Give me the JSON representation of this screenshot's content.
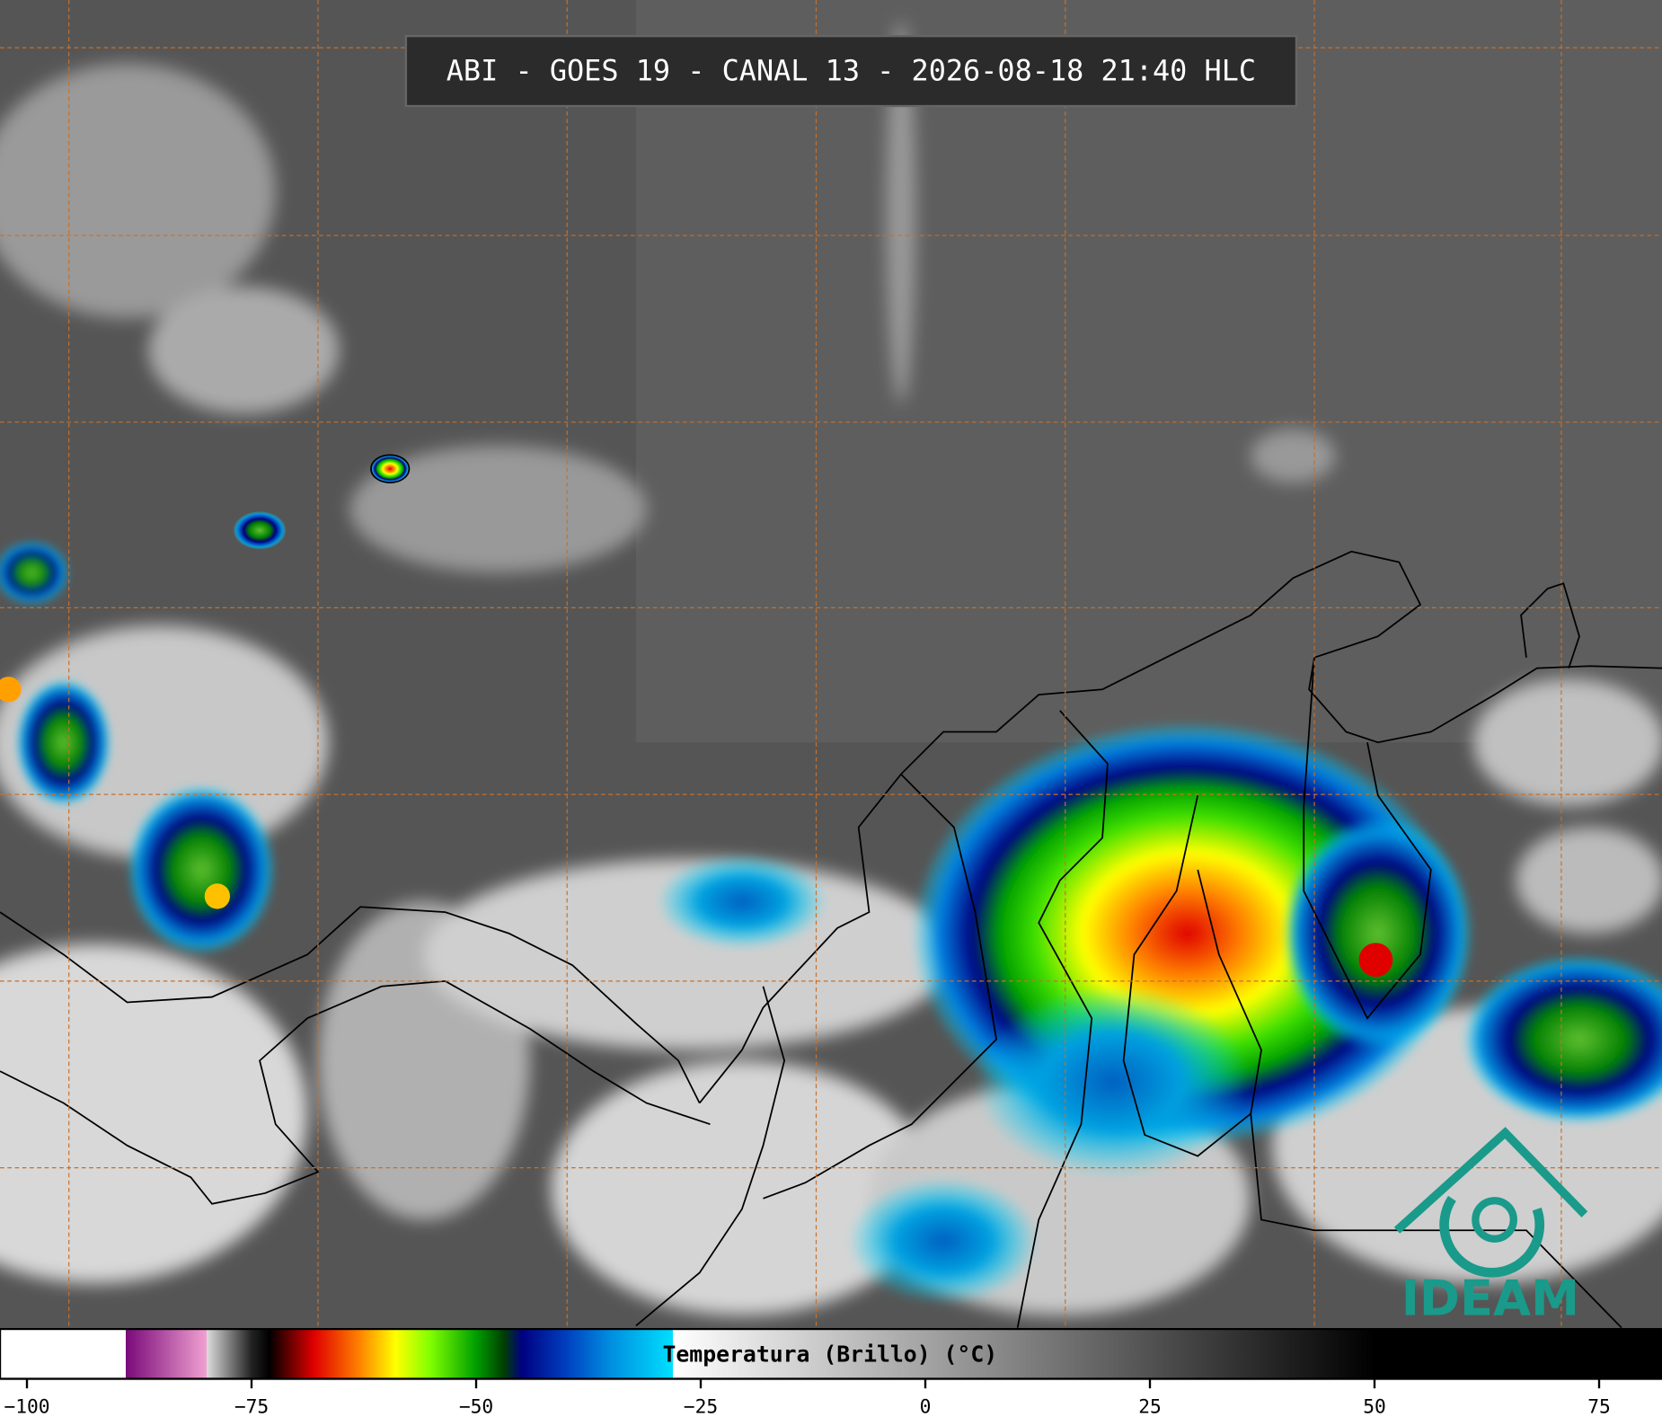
{
  "title": "ABI - GOES 19 - CANAL 13 - 2026-08-18 21:40 HLC",
  "colorbar": {
    "label": "Temperatura (Brillo) (°C)",
    "xlim": [
      -103,
      82
    ],
    "ticks": [
      {
        "value": -100,
        "label": "−100"
      },
      {
        "value": -75,
        "label": "−75"
      },
      {
        "value": -50,
        "label": "−50"
      },
      {
        "value": -25,
        "label": "−25"
      },
      0,
      25,
      50,
      75
    ]
  },
  "logo": "IDEAM"
}
